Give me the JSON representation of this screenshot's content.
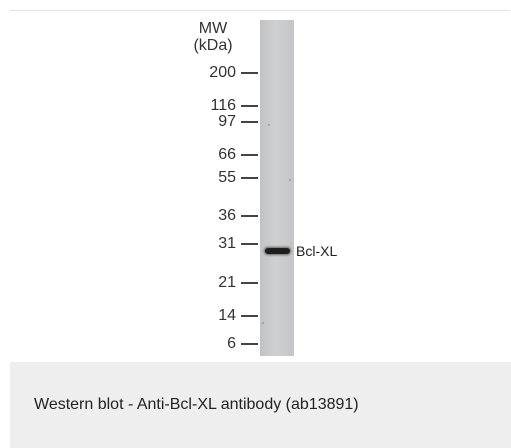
{
  "blot": {
    "mw_header_line1": "MW",
    "mw_header_line2": "(kDa)",
    "markers": [
      "200",
      "116",
      "97",
      "66",
      "55",
      "36",
      "31",
      "21",
      "14",
      "6"
    ],
    "band_label": "Bcl-XL"
  },
  "caption": "Western blot - Anti-Bcl-XL antibody (ab13891)"
}
